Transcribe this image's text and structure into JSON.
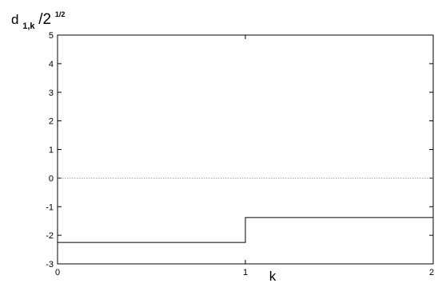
{
  "chart_data": {
    "type": "line",
    "step": true,
    "x_ticks": [
      0,
      1,
      2
    ],
    "x_tick_labels": [
      "0",
      "1",
      "2"
    ],
    "y_ticks": [
      -3,
      -2,
      -1,
      0,
      1,
      2,
      3,
      4,
      5
    ],
    "y_tick_labels": [
      "-3",
      "-2",
      "-1",
      "0",
      "1",
      "2",
      "3",
      "4",
      "5"
    ],
    "xlim": [
      0,
      2
    ],
    "ylim": [
      -3,
      5
    ],
    "xlabel": "k",
    "ylabel": {
      "main": "d",
      "sub": "1,k",
      "slash": "/2",
      "sup": "1/2"
    },
    "series": [
      {
        "x": [
          0,
          1,
          1,
          2
        ],
        "y": [
          -2.25,
          -2.25,
          -1.38,
          -1.38
        ],
        "color": "#000000"
      }
    ],
    "reference_line": {
      "y": 0,
      "style": "dotted",
      "color": "#888888"
    },
    "grid": false
  }
}
